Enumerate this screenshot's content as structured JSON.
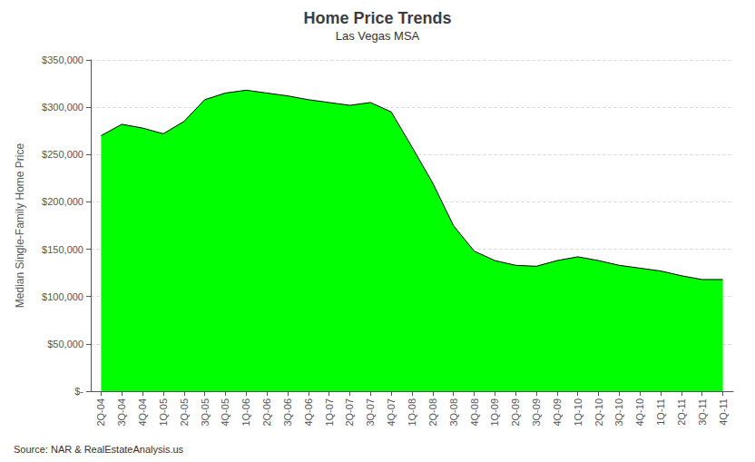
{
  "chart_data": {
    "type": "area",
    "title": "Home Price Trends",
    "subtitle": "Las Vegas MSA",
    "ylabel": "Median Single-Family Home Price",
    "source": "Source: NAR & RealEstateAnalysis.us",
    "categories": [
      "2Q-04",
      "3Q-04",
      "4Q-04",
      "1Q-05",
      "2Q-05",
      "3Q-05",
      "4Q-05",
      "1Q-06",
      "2Q-06",
      "3Q-06",
      "4Q-06",
      "1Q-07",
      "2Q-07",
      "3Q-07",
      "4Q-07",
      "1Q-08",
      "2Q-08",
      "3Q-08",
      "4Q-08",
      "1Q-09",
      "2Q-09",
      "3Q-09",
      "4Q-09",
      "1Q-10",
      "2Q-10",
      "3Q-10",
      "4Q-10",
      "1Q-11",
      "2Q-11",
      "3Q-11",
      "4Q-11"
    ],
    "values": [
      270000,
      282000,
      278000,
      272000,
      285000,
      308000,
      315000,
      318000,
      315000,
      312000,
      308000,
      305000,
      302000,
      305000,
      295000,
      258000,
      220000,
      175000,
      148000,
      138000,
      133000,
      132000,
      138000,
      142000,
      138000,
      133000,
      130000,
      127000,
      122000,
      118000,
      118000
    ],
    "color": "#00FF00",
    "ylim": [
      0,
      350000
    ],
    "yticks": [
      {
        "value": 0,
        "label": "$-"
      },
      {
        "value": 50000,
        "label": "$50,000"
      },
      {
        "value": 100000,
        "label": "$100,000"
      },
      {
        "value": 150000,
        "label": "$150,000"
      },
      {
        "value": 200000,
        "label": "$200,000"
      },
      {
        "value": 250000,
        "label": "$250,000"
      },
      {
        "value": 300000,
        "label": "$300,000"
      },
      {
        "value": 350000,
        "label": "$350,000"
      }
    ],
    "grid": true
  }
}
